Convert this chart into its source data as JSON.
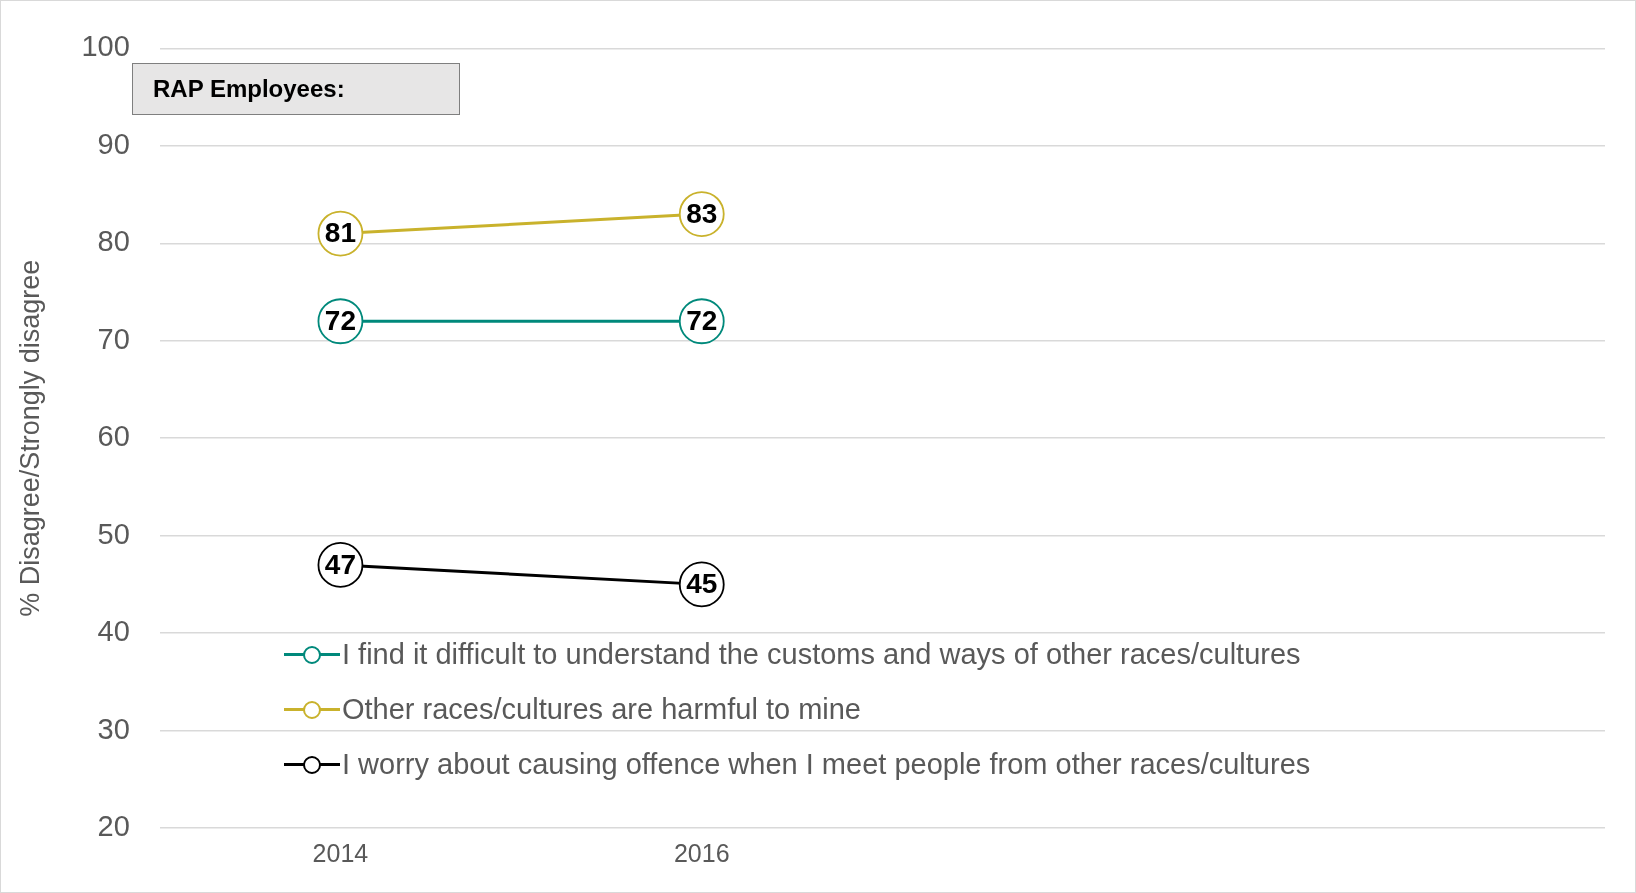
{
  "chart_data": {
    "type": "line",
    "ylabel": "% Disagree/Strongly disagree",
    "annotations": [
      "RAP Employees:"
    ],
    "categories": [
      "2014",
      "2016",
      null,
      null
    ],
    "series": [
      {
        "name": "I find it difficult to understand the customs and ways of other races/cultures",
        "color": "#00897b",
        "values": [
          72,
          72,
          null,
          null
        ]
      },
      {
        "name": "Other races/cultures are harmful to mine",
        "color": "#c9b22c",
        "values": [
          81,
          83,
          null,
          null
        ]
      },
      {
        "name": "I worry about causing offence when I meet people from other races/cultures",
        "color": "#000000",
        "values": [
          47,
          45,
          null,
          null
        ]
      }
    ],
    "ylim": [
      20,
      100
    ],
    "yticks": [
      20,
      30,
      40,
      50,
      60,
      70,
      80,
      90,
      100
    ],
    "grid": "y",
    "legend": "bottom left",
    "marker": "circle",
    "data_labels": true
  }
}
